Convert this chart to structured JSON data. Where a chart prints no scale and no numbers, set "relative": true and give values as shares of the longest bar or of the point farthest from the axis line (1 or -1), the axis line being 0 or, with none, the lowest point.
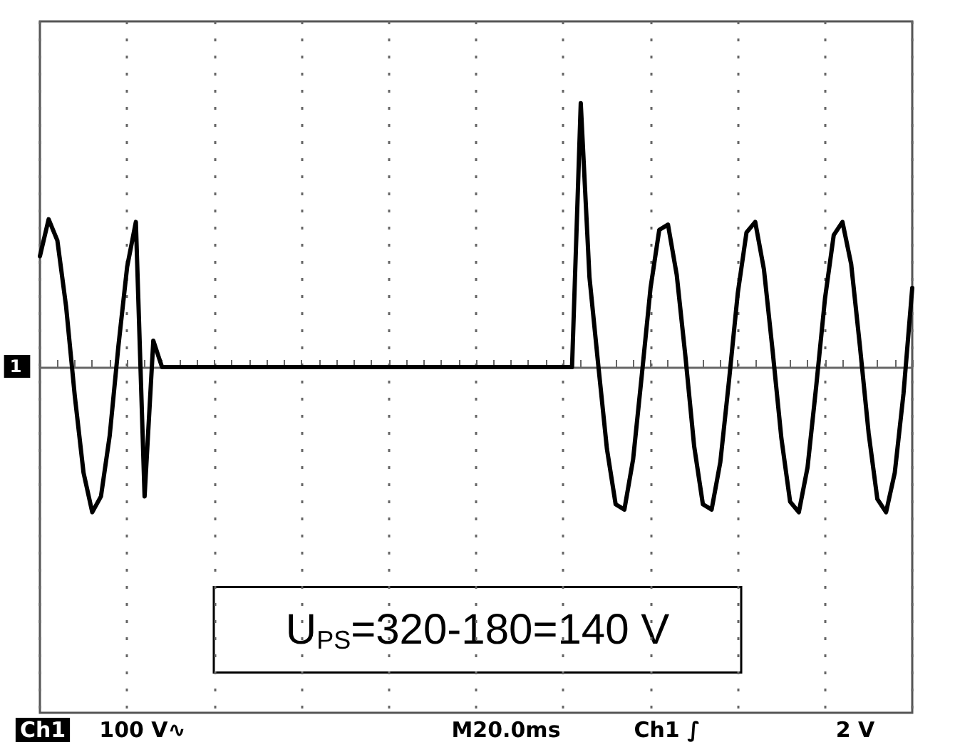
{
  "chart_data": {
    "type": "line",
    "relative": true,
    "grid": true,
    "line_style": "solid",
    "categories": [
      null,
      null,
      null,
      null,
      null,
      null,
      null,
      null,
      null,
      null,
      null,
      null,
      null,
      null,
      null,
      null,
      null,
      null,
      null,
      null,
      null,
      null,
      null,
      null,
      null,
      null,
      null,
      null,
      null,
      null,
      null,
      null,
      null,
      null,
      null,
      null,
      null,
      null,
      null,
      null,
      null,
      null,
      null,
      null,
      null,
      null,
      null,
      null,
      null,
      null,
      null,
      null,
      null,
      null,
      null,
      null,
      null,
      null,
      null,
      null,
      null,
      null,
      null,
      null,
      null,
      null,
      null,
      null,
      null,
      null,
      null,
      null,
      null,
      null,
      null,
      null,
      null,
      null,
      null,
      null,
      null,
      null,
      null,
      null,
      null,
      null,
      null,
      null,
      null,
      null,
      null,
      null,
      null,
      null,
      null,
      null,
      null,
      null,
      null,
      null,
      null
    ],
    "series": [
      {
        "color": "#000000",
        "values": [
          0.42,
          0.56,
          0.48,
          0.23,
          -0.11,
          -0.4,
          -0.55,
          -0.49,
          -0.26,
          0.08,
          0.38,
          0.55,
          -0.49,
          0.1,
          0,
          0,
          0,
          0,
          0,
          0,
          0,
          0,
          0,
          0,
          0,
          0,
          0,
          0,
          0,
          0,
          0,
          0,
          0,
          0,
          0,
          0,
          0,
          0,
          0,
          0,
          0,
          0,
          0,
          0,
          0,
          0,
          0,
          0,
          0,
          0,
          0,
          0,
          0,
          0,
          0,
          0,
          0,
          0,
          0,
          0,
          0,
          0,
          1.0,
          0.34,
          0.01,
          -0.31,
          -0.52,
          -0.54,
          -0.35,
          -0.03,
          0.3,
          0.52,
          0.54,
          0.35,
          0.04,
          -0.3,
          -0.52,
          -0.54,
          -0.36,
          -0.05,
          0.28,
          0.51,
          0.55,
          0.37,
          0.06,
          -0.27,
          -0.51,
          -0.55,
          -0.38,
          -0.07,
          0.26,
          0.5,
          0.55,
          0.39,
          0.08,
          -0.25,
          -0.5,
          -0.55,
          -0.4,
          -0.1,
          0.3
        ]
      }
    ],
    "annotations": [
      "U$_{PS}$=320-180=140 V",
      "Ch1",
      "100 V∿",
      "M20.0ms",
      "Ch1 ∫",
      "2 V",
      "1"
    ]
  }
}
